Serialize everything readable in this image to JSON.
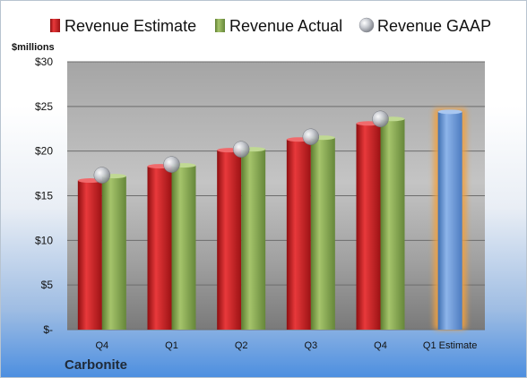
{
  "chart_data": {
    "type": "bar",
    "categories": [
      "Q4",
      "Q1",
      "Q2",
      "Q3",
      "Q4",
      "Q1 Estimate"
    ],
    "series": [
      {
        "name": "Revenue Estimate",
        "color": "#c0191c",
        "values": [
          16.7,
          18.3,
          20.1,
          21.3,
          23.1,
          null
        ]
      },
      {
        "name": "Revenue Actual",
        "color": "#7da04a",
        "values": [
          17.2,
          18.4,
          20.2,
          21.5,
          23.6,
          24.4
        ]
      },
      {
        "name": "Revenue GAAP",
        "color": "#b9bcc2",
        "marker": "sphere",
        "values": [
          17.3,
          18.5,
          20.2,
          21.6,
          23.6,
          null
        ]
      }
    ],
    "estimate_bar": {
      "category": "Q1 Estimate",
      "value": 24.4,
      "color": "#6c9ad6",
      "glow": "#f0a040"
    },
    "ylabel": "$millions",
    "ylim": [
      0,
      30
    ],
    "yticks": [
      0,
      5,
      10,
      15,
      20,
      25,
      30
    ],
    "ytick_labels": [
      "$-",
      "$5",
      "$10",
      "$15",
      "$20",
      "$25",
      "$30"
    ],
    "grid": true,
    "legend_position": "top",
    "footer": "Carbonite"
  }
}
